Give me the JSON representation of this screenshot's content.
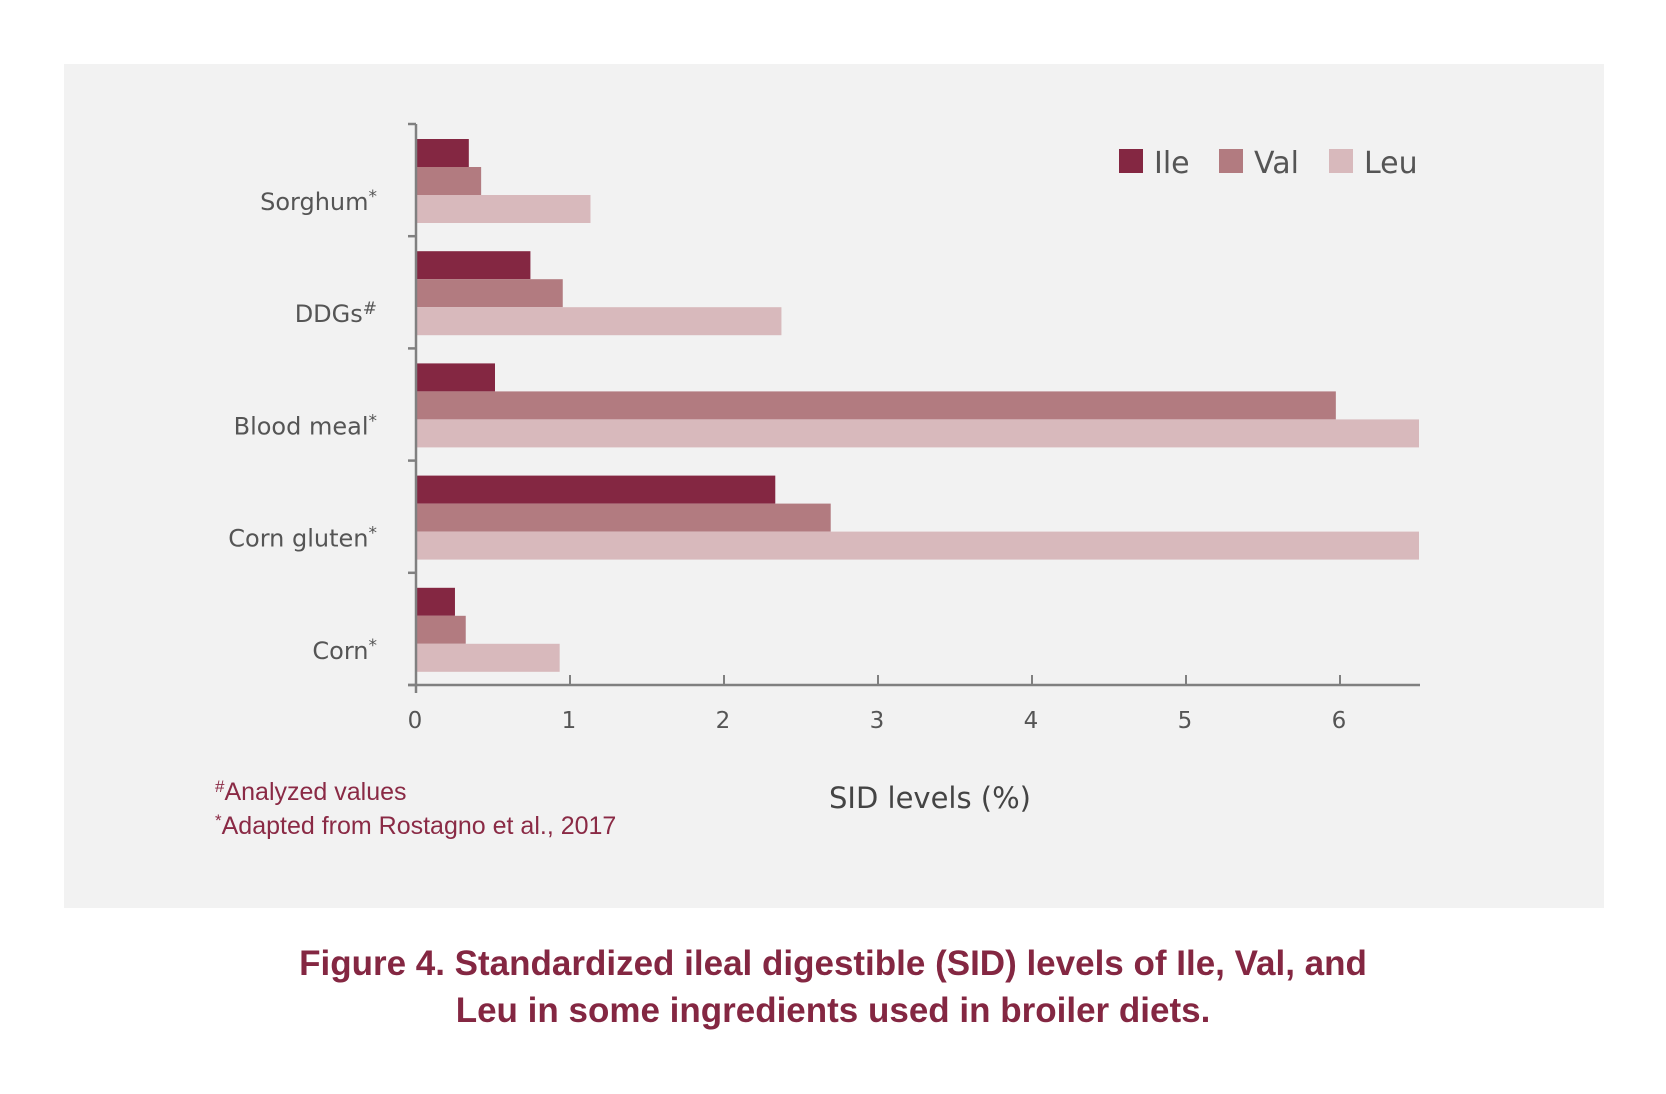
{
  "figure": {
    "caption_line1": "Figure 4. Standardized ileal digestible (SID) levels of Ile, Val, and",
    "caption_line2": "Leu in some ingredients used in broiler diets."
  },
  "footnotes": {
    "analyzed_mark": "#",
    "analyzed_text": "Analyzed values",
    "adapted_mark": "*",
    "adapted_text": "Adapted from Rostagno et al., 2017"
  },
  "colors": {
    "Ile": "#842742",
    "Val": "#b27b80",
    "Leu": "#d8b9bc",
    "panel": "#f2f2f2",
    "axis": "#808080",
    "text": "#555555",
    "accent": "#842742"
  },
  "chart_data": {
    "type": "bar",
    "orientation": "horizontal",
    "title": "",
    "xlabel": "SID levels (%)",
    "ylabel": "",
    "xlim": [
      0,
      6.5
    ],
    "xticks": [
      0,
      1,
      2,
      3,
      4,
      5,
      6
    ],
    "grid": false,
    "legend_position": "top-right",
    "categories": [
      "Sorghum*",
      "DDGs#",
      "Blood meal*",
      "Corn gluten*",
      "Corn*"
    ],
    "series": [
      {
        "name": "Ile",
        "values": [
          0.33,
          0.73,
          0.5,
          2.32,
          0.24
        ]
      },
      {
        "name": "Val",
        "values": [
          0.41,
          0.94,
          5.96,
          2.68,
          0.31
        ]
      },
      {
        "name": "Leu",
        "values": [
          1.12,
          2.36,
          6.5,
          6.5,
          0.92
        ]
      }
    ]
  }
}
